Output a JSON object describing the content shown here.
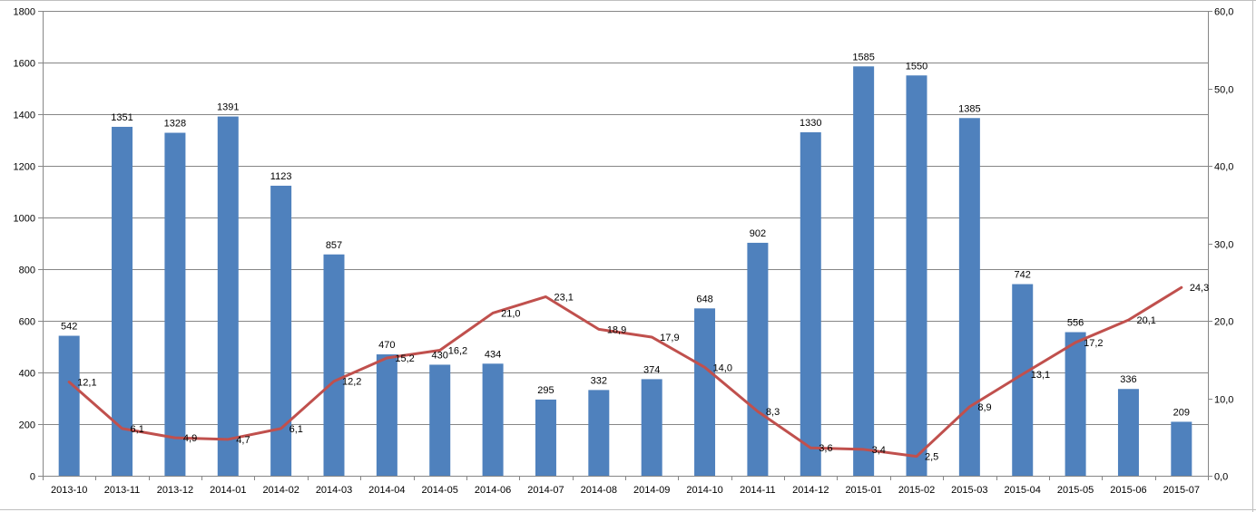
{
  "chart_data": {
    "type": "bar+line",
    "categories": [
      "2013-10",
      "2013-11",
      "2013-12",
      "2014-01",
      "2014-02",
      "2014-03",
      "2014-04",
      "2014-05",
      "2014-06",
      "2014-07",
      "2014-08",
      "2014-09",
      "2014-10",
      "2014-11",
      "2014-12",
      "2015-01",
      "2015-02",
      "2015-03",
      "2015-04",
      "2015-05",
      "2015-06",
      "2015-07"
    ],
    "series": [
      {
        "type": "bar",
        "axis": "left",
        "color": "#4F81BD",
        "values": [
          542,
          1351,
          1328,
          1391,
          1123,
          857,
          470,
          430,
          434,
          295,
          332,
          374,
          648,
          902,
          1330,
          1585,
          1550,
          1385,
          742,
          556,
          336,
          209
        ],
        "labels": [
          "542",
          "1351",
          "1328",
          "1391",
          "1123",
          "857",
          "470",
          "430",
          "434",
          "295",
          "332",
          "374",
          "648",
          "902",
          "1330",
          "1585",
          "1550",
          "1385",
          "742",
          "556",
          "336",
          "209"
        ]
      },
      {
        "type": "line",
        "axis": "right",
        "color": "#C0504D",
        "values": [
          12.1,
          6.1,
          4.9,
          4.7,
          6.1,
          12.2,
          15.2,
          16.2,
          21.0,
          23.1,
          18.9,
          17.9,
          14.0,
          8.3,
          3.6,
          3.4,
          2.5,
          8.9,
          13.1,
          17.2,
          20.1,
          24.3
        ],
        "labels": [
          "12,1",
          "6,1",
          "4,9",
          "4,7",
          "6,1",
          "12,2",
          "15,2",
          "16,2",
          "21,0",
          "23,1",
          "18,9",
          "17,9",
          "14,0",
          "8,3",
          "3,6",
          "3,4",
          "2,5",
          "8,9",
          "13,1",
          "17,2",
          "20,1",
          "24,3"
        ]
      }
    ],
    "y_left": {
      "ylim": [
        0,
        1800
      ],
      "ticks": [
        "0",
        "200",
        "400",
        "600",
        "800",
        "1000",
        "1200",
        "1400",
        "1600",
        "1800"
      ]
    },
    "y_right": {
      "ylim": [
        0,
        60
      ],
      "ticks": [
        "0,0",
        "10,0",
        "20,0",
        "30,0",
        "40,0",
        "50,0",
        "60,0"
      ]
    },
    "grid": true,
    "title": "",
    "xlabel": "",
    "ylabel": ""
  }
}
